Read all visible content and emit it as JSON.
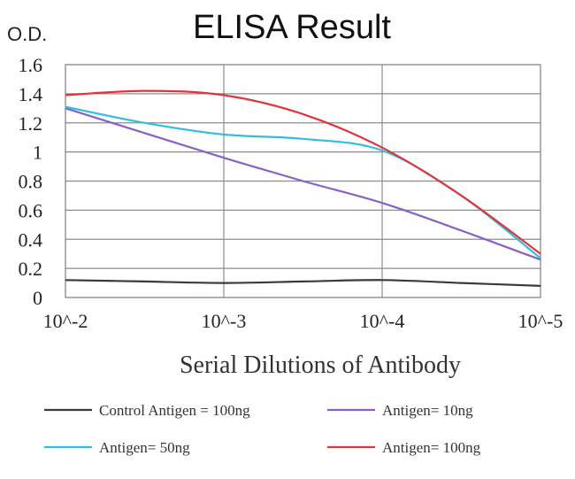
{
  "chart_data": {
    "type": "line",
    "title": "ELISA Result",
    "ylabel": "O.D.",
    "xlabel": "Serial Dilutions of Antibody",
    "x_categories": [
      "10^-2",
      "10^-3",
      "10^-4",
      "10^-5"
    ],
    "x_positions": [
      0,
      0.5,
      1,
      1.5,
      2,
      2.5,
      3
    ],
    "ylim": [
      0,
      1.6
    ],
    "yticks": [
      "0",
      "0.2",
      "0.4",
      "0.6",
      "0.8",
      "1",
      "1.2",
      "1.4",
      "1.6"
    ],
    "grid": true,
    "legend_position": "bottom",
    "series": [
      {
        "name": "Control Antigen = 100ng",
        "color": "#3a3a3a",
        "values": [
          0.12,
          0.11,
          0.1,
          0.11,
          0.12,
          0.1,
          0.08
        ]
      },
      {
        "name": "Antigen= 10ng",
        "color": "#8a60c8",
        "values": [
          1.3,
          1.13,
          0.96,
          0.8,
          0.65,
          0.46,
          0.26
        ]
      },
      {
        "name": "Antigen= 50ng",
        "color": "#33bde0",
        "values": [
          1.31,
          1.2,
          1.12,
          1.09,
          1.01,
          0.7,
          0.27
        ]
      },
      {
        "name": "Antigen= 100ng",
        "color": "#e0353c",
        "values": [
          1.39,
          1.42,
          1.39,
          1.26,
          1.03,
          0.7,
          0.3
        ]
      }
    ]
  }
}
